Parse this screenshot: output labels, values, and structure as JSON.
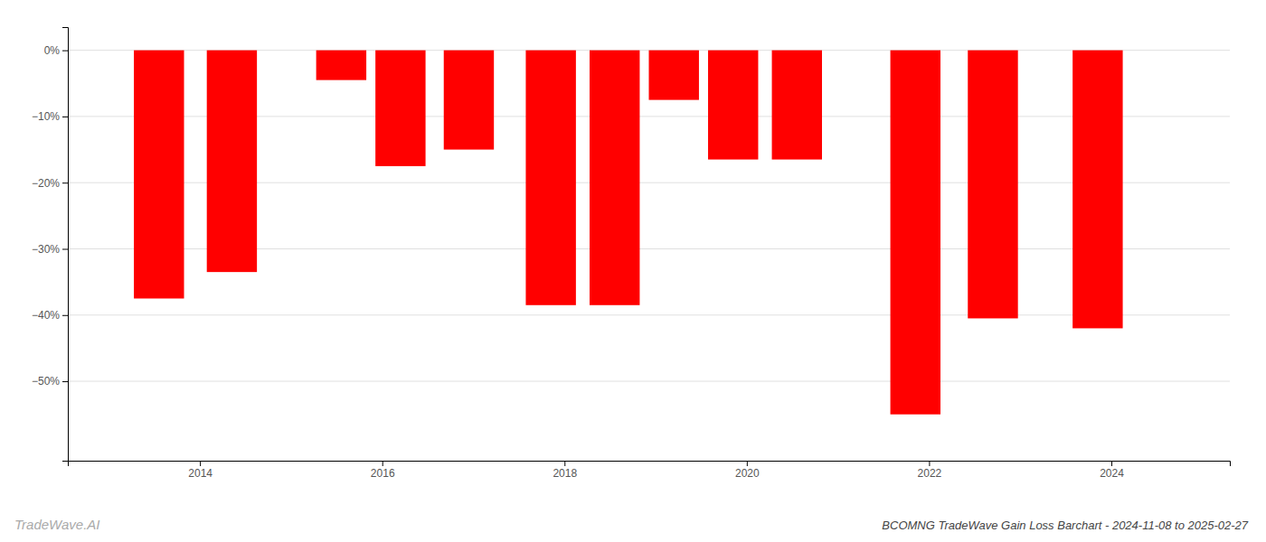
{
  "chart_data": {
    "type": "bar",
    "title": "BCOMNG TradeWave Gain Loss Barchart - 2024-11-08 to 2025-02-27",
    "annotations": [
      "TradeWave.AI"
    ],
    "x": [
      2013.55,
      2014.35,
      2015.55,
      2016.2,
      2016.95,
      2017.85,
      2018.55,
      2019.2,
      2019.85,
      2020.55,
      2021.85,
      2022.7,
      2023.85
    ],
    "values": [
      -37.5,
      -33.5,
      -4.5,
      -17.5,
      -15.0,
      -38.5,
      -38.5,
      -7.5,
      -16.5,
      -16.5,
      -55.0,
      -40.5,
      -42.0
    ],
    "color": "#ff0000",
    "xlim": [
      2012.55,
      2025.3
    ],
    "xticks": [
      2014,
      2016,
      2018,
      2020,
      2022,
      2024
    ],
    "ylim": [
      -62,
      3.5
    ],
    "yticks": [
      {
        "value": 0,
        "label": "0%"
      },
      {
        "value": -10,
        "label": "−10%"
      },
      {
        "value": -20,
        "label": "−20%"
      },
      {
        "value": -30,
        "label": "−30%"
      },
      {
        "value": -40,
        "label": "−40%"
      },
      {
        "value": -50,
        "label": "−50%"
      }
    ],
    "grid": true
  }
}
